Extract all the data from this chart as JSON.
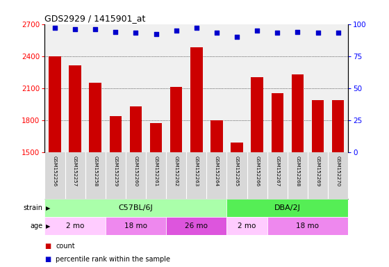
{
  "title": "GDS2929 / 1415901_at",
  "samples": [
    "GSM152256",
    "GSM152257",
    "GSM152258",
    "GSM152259",
    "GSM152260",
    "GSM152261",
    "GSM152262",
    "GSM152263",
    "GSM152264",
    "GSM152265",
    "GSM152266",
    "GSM152267",
    "GSM152268",
    "GSM152269",
    "GSM152270"
  ],
  "counts": [
    2400,
    2310,
    2150,
    1840,
    1930,
    1775,
    2110,
    2480,
    1800,
    1590,
    2200,
    2050,
    2230,
    1990,
    1990
  ],
  "percentile_ranks": [
    97,
    96,
    96,
    94,
    93,
    92,
    95,
    97,
    93,
    90,
    95,
    93,
    94,
    93,
    93
  ],
  "ylim_left": [
    1500,
    2700
  ],
  "ylim_right": [
    0,
    100
  ],
  "yticks_left": [
    1500,
    1800,
    2100,
    2400,
    2700
  ],
  "yticks_right": [
    0,
    25,
    50,
    75,
    100
  ],
  "bar_color": "#cc0000",
  "dot_color": "#0000cc",
  "strain_groups": [
    {
      "label": "C57BL/6J",
      "start": 0,
      "end": 9,
      "color": "#aaffaa"
    },
    {
      "label": "DBA/2J",
      "start": 9,
      "end": 15,
      "color": "#55ee55"
    }
  ],
  "age_groups": [
    {
      "label": "2 mo",
      "start": 0,
      "end": 3,
      "color": "#ffccff"
    },
    {
      "label": "18 mo",
      "start": 3,
      "end": 6,
      "color": "#ee88ee"
    },
    {
      "label": "26 mo",
      "start": 6,
      "end": 9,
      "color": "#dd55dd"
    },
    {
      "label": "2 mo",
      "start": 9,
      "end": 11,
      "color": "#ffccff"
    },
    {
      "label": "18 mo",
      "start": 11,
      "end": 15,
      "color": "#ee88ee"
    }
  ],
  "legend_items": [
    {
      "label": "count",
      "color": "#cc0000"
    },
    {
      "label": "percentile rank within the sample",
      "color": "#0000cc"
    }
  ],
  "background_color": "#ffffff",
  "plot_bg_color": "#f0f0f0",
  "label_bg_color": "#d8d8d8"
}
